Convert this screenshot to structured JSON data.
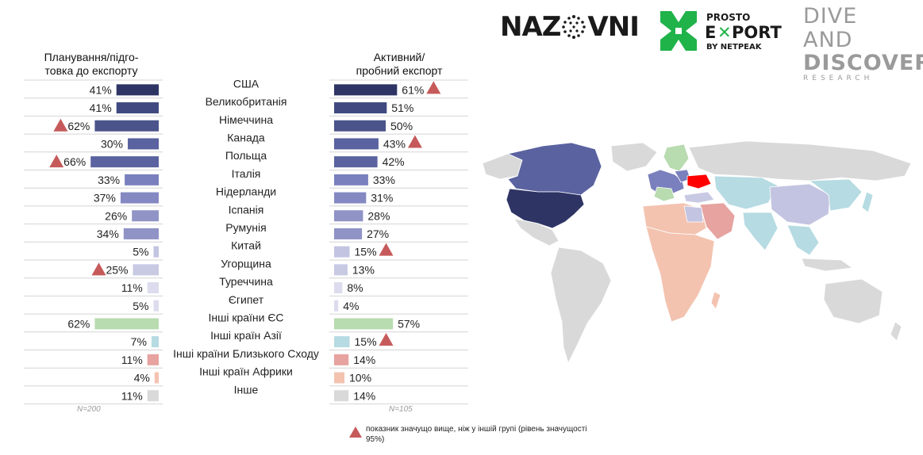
{
  "headers": {
    "left": "Планування/підго-\nтовка до експорту",
    "right": "Активний/\nпробний експорт"
  },
  "notes": {
    "left_n": "N=200",
    "right_n": "N=105"
  },
  "legend": {
    "text": "показник значущо вище, ніж у іншій групі (рівень значущості 95%)"
  },
  "logos": {
    "nazovni_left": "NAZ",
    "nazovni_right": "VNI",
    "prosto_top": "PROSTO",
    "prosto_mid_a": "E",
    "prosto_mid_b": "PORT",
    "prosto_bottom": "BY NETPEAK",
    "dd_line1": "DIVE AND",
    "dd_line2": "DISCOVERY",
    "dd_line3": "RESEARCH"
  },
  "chart_data": {
    "type": "bar",
    "orientation": "horizontal-butterfly",
    "categories": [
      "США",
      "Великобританія",
      "Німеччина",
      "Канада",
      "Польща",
      "Італія",
      "Нідерланди",
      "Іспанія",
      "Румунія",
      "Китай",
      "Угорщина",
      "Туреччина",
      "Єгипет",
      "Інші країни ЄС",
      "Інші країн Азії",
      "Інші країни Близького Сходу",
      "Інші країн Африки",
      "Інше"
    ],
    "series": [
      {
        "name": "Планування/підго-\nтовка до експорту",
        "values": [
          41,
          41,
          62,
          30,
          66,
          33,
          37,
          26,
          34,
          5,
          25,
          11,
          5,
          62,
          7,
          11,
          4,
          11
        ],
        "significant": [
          false,
          false,
          true,
          false,
          true,
          false,
          false,
          false,
          false,
          false,
          true,
          false,
          false,
          false,
          false,
          false,
          false,
          false
        ]
      },
      {
        "name": "Активний/\nпробний експорт",
        "values": [
          61,
          51,
          50,
          43,
          42,
          33,
          31,
          28,
          27,
          15,
          13,
          8,
          4,
          57,
          15,
          14,
          10,
          14
        ],
        "significant": [
          true,
          false,
          false,
          true,
          false,
          false,
          false,
          false,
          false,
          true,
          false,
          false,
          false,
          false,
          true,
          false,
          false,
          false
        ]
      }
    ],
    "bar_colors": [
      "#2e3565",
      "#404a80",
      "#4a538a",
      "#5a62a0",
      "#5a62a0",
      "#7a80bd",
      "#8489c2",
      "#8f93c6",
      "#8f93c6",
      "#c3c4e1",
      "#c8c9e3",
      "#dcdcee",
      "#dcdcee",
      "#b8dbb0",
      "#b6dbe2",
      "#e6a39f",
      "#f3c3b0",
      "#d9d9d9"
    ],
    "marker_color": "#c65a5a",
    "value_suffix": "%",
    "xlim": [
      0,
      100
    ]
  },
  "map_colors": {
    "usa": "#2e3565",
    "canada": "#5a62a0",
    "europe": "#7a80bd",
    "eu_other": "#b8dbb0",
    "ukraine": "#ff0000",
    "asia": "#b6dbe2",
    "middle_east": "#e6a39f",
    "africa": "#f3c3b0",
    "other": "#d9d9d9",
    "china": "#c3c4e1",
    "turkey": "#c8c9e3"
  }
}
